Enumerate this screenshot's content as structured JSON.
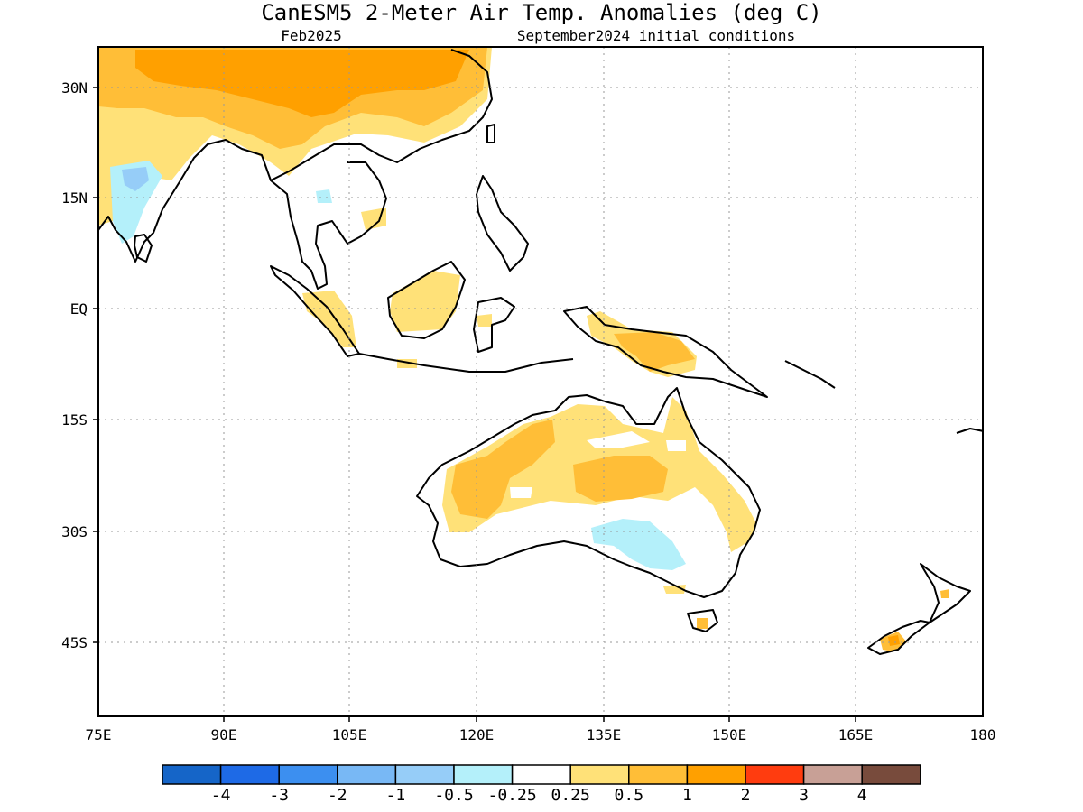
{
  "title": "CanESM5 2-Meter Air Temp. Anomalies (deg C)",
  "valid_month": "Feb2025",
  "init_conditions": "September2024 initial conditions",
  "map": {
    "projection": "lat-lon",
    "lon_range_deg": [
      75,
      180
    ],
    "lat_range_deg": [
      -55,
      35
    ],
    "gridlines": "dotted",
    "x_ticks": [
      "75E",
      "90E",
      "105E",
      "120E",
      "135E",
      "150E",
      "165E",
      "180"
    ],
    "y_ticks": [
      "30N",
      "15N",
      "EQ",
      "15S",
      "30S",
      "45S"
    ]
  },
  "colorbar": {
    "labels": [
      "-4",
      "-3",
      "-2",
      "-1",
      "-0.5",
      "-0.25",
      "0.25",
      "0.5",
      "1",
      "2",
      "3",
      "4"
    ],
    "colors": [
      "#1565c8",
      "#1e6ae6",
      "#3c8ff0",
      "#78b8f5",
      "#96cdf8",
      "#b4f0fa",
      "#ffffff",
      "#ffe178",
      "#ffbe37",
      "#ffa000",
      "#ff3c0f",
      "#c8a096",
      "#784b3c"
    ]
  }
}
